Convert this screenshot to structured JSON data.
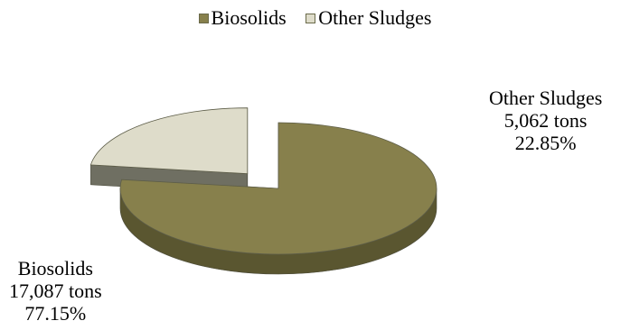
{
  "legend": {
    "items": [
      {
        "label": "Biosolids",
        "color": "#87804c"
      },
      {
        "label": "Other Sludges",
        "color": "#dedcca"
      }
    ]
  },
  "chart_data": {
    "type": "pie",
    "title": "",
    "three_d": true,
    "exploded_slice": "Other Sludges",
    "legend_position": "top",
    "slices": [
      {
        "label": "Biosolids",
        "value": 17087,
        "unit": "tons",
        "percent": 77.15,
        "value_label": "17,087 tons",
        "percent_label": "77.15%",
        "top_color": "#87804c",
        "side_color": "#5a5630"
      },
      {
        "label": "Other Sludges",
        "value": 5062,
        "unit": "tons",
        "percent": 22.85,
        "value_label": "5,062 tons",
        "percent_label": "22.85%",
        "top_color": "#dedcca",
        "side_color": "#6f6f62"
      }
    ]
  }
}
